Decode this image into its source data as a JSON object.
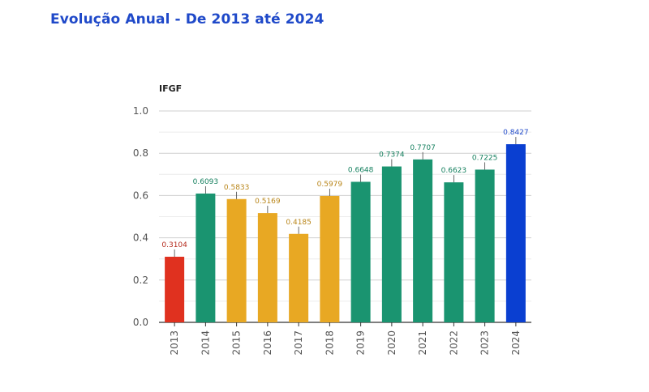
{
  "header": {
    "title": "Evolução Anual - De 2013 até 2024"
  },
  "chart_data": {
    "type": "bar",
    "title": "Evolução Anual - De 2013 até 2024",
    "xlabel": "",
    "ylabel": "IFGF",
    "ylim": [
      0,
      1.0
    ],
    "yticks": [
      "0.0",
      "0.2",
      "0.4",
      "0.6",
      "0.8",
      "1.0"
    ],
    "grid": true,
    "categories": [
      "2013",
      "2014",
      "2015",
      "2016",
      "2017",
      "2018",
      "2019",
      "2020",
      "2021",
      "2022",
      "2023",
      "2024"
    ],
    "values": [
      0.3104,
      0.6093,
      0.5833,
      0.5169,
      0.4185,
      0.5979,
      0.6648,
      0.7374,
      0.7707,
      0.6623,
      0.7225,
      0.8427
    ],
    "labels": [
      "0.3104",
      "0.6093",
      "0.5833",
      "0.5169",
      "0.4185",
      "0.5979",
      "0.6648",
      "0.7374",
      "0.7707",
      "0.6623",
      "0.7225",
      "0.8427"
    ],
    "colors": [
      "#e0311f",
      "#1a9470",
      "#e8a823",
      "#e8a823",
      "#e8a823",
      "#e8a823",
      "#1a9470",
      "#1a9470",
      "#1a9470",
      "#1a9470",
      "#1a9470",
      "#0a3fd1"
    ],
    "label_colors": [
      "#b52a1c",
      "#16805f",
      "#b9861a",
      "#b9861a",
      "#b9861a",
      "#b9861a",
      "#16805f",
      "#16805f",
      "#16805f",
      "#16805f",
      "#16805f",
      "#1f49c9"
    ]
  }
}
